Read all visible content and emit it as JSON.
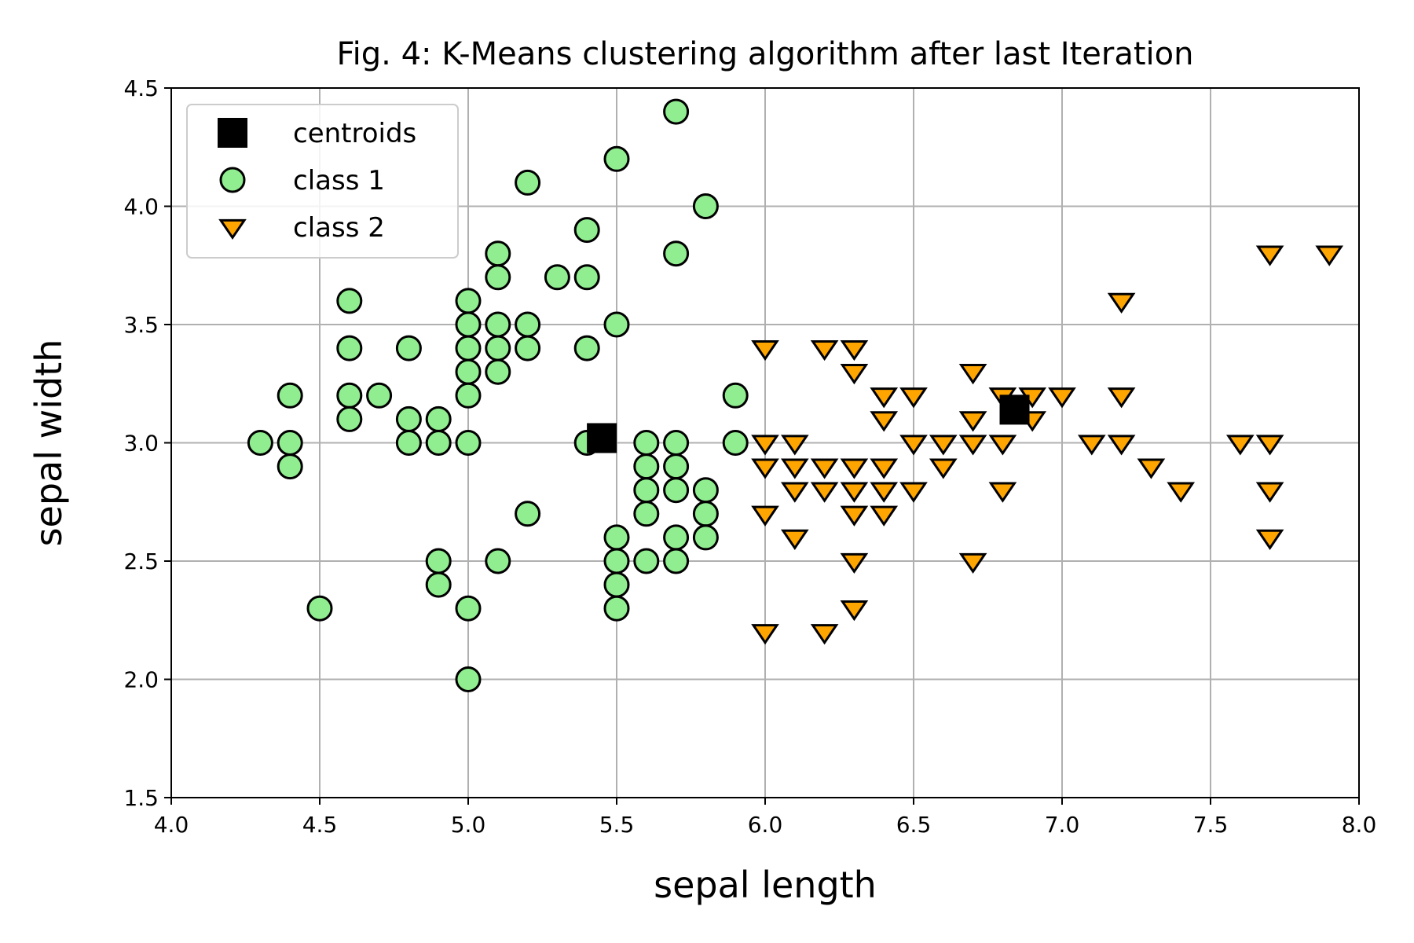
{
  "chart_data": {
    "type": "scatter",
    "title": "Fig. 4: K-Means clustering algorithm after last Iteration",
    "xlabel": "sepal length",
    "ylabel": "sepal width",
    "xlim": [
      4.0,
      8.0
    ],
    "ylim": [
      1.5,
      4.5
    ],
    "xticks": [
      "4.0",
      "4.5",
      "5.0",
      "5.5",
      "6.0",
      "6.5",
      "7.0",
      "7.5",
      "8.0"
    ],
    "yticks": [
      "1.5",
      "2.0",
      "2.5",
      "3.0",
      "3.5",
      "4.0",
      "4.5"
    ],
    "grid": true,
    "legend_position": "top-left",
    "series": [
      {
        "name": "centroids",
        "marker": "square",
        "color": "#000000",
        "points": [
          [
            5.45,
            3.02
          ],
          [
            6.84,
            3.14
          ]
        ]
      },
      {
        "name": "class 1",
        "marker": "circle",
        "color": "#90EE90",
        "edge_color": "#000000",
        "points": [
          [
            4.3,
            3.0
          ],
          [
            4.4,
            3.2
          ],
          [
            4.4,
            3.0
          ],
          [
            4.4,
            2.9
          ],
          [
            4.5,
            2.3
          ],
          [
            4.6,
            3.6
          ],
          [
            4.6,
            3.4
          ],
          [
            4.6,
            3.2
          ],
          [
            4.6,
            3.1
          ],
          [
            4.7,
            3.2
          ],
          [
            4.8,
            3.4
          ],
          [
            4.8,
            3.1
          ],
          [
            4.8,
            3.0
          ],
          [
            4.9,
            3.1
          ],
          [
            4.9,
            3.0
          ],
          [
            4.9,
            2.5
          ],
          [
            4.9,
            2.4
          ],
          [
            5.0,
            3.6
          ],
          [
            5.0,
            3.5
          ],
          [
            5.0,
            3.4
          ],
          [
            5.0,
            3.3
          ],
          [
            5.0,
            3.2
          ],
          [
            5.0,
            3.0
          ],
          [
            5.0,
            2.3
          ],
          [
            5.0,
            2.0
          ],
          [
            5.1,
            3.8
          ],
          [
            5.1,
            3.7
          ],
          [
            5.1,
            3.5
          ],
          [
            5.1,
            3.4
          ],
          [
            5.1,
            3.3
          ],
          [
            5.1,
            2.5
          ],
          [
            5.2,
            4.1
          ],
          [
            5.2,
            3.5
          ],
          [
            5.2,
            3.4
          ],
          [
            5.2,
            2.7
          ],
          [
            5.3,
            3.7
          ],
          [
            5.4,
            3.9
          ],
          [
            5.4,
            3.7
          ],
          [
            5.4,
            3.4
          ],
          [
            5.4,
            3.0
          ],
          [
            5.5,
            4.2
          ],
          [
            5.5,
            3.5
          ],
          [
            5.5,
            2.6
          ],
          [
            5.5,
            2.5
          ],
          [
            5.5,
            2.4
          ],
          [
            5.5,
            2.3
          ],
          [
            5.6,
            3.0
          ],
          [
            5.6,
            2.9
          ],
          [
            5.6,
            2.8
          ],
          [
            5.6,
            2.7
          ],
          [
            5.6,
            2.5
          ],
          [
            5.7,
            4.4
          ],
          [
            5.7,
            3.8
          ],
          [
            5.7,
            3.0
          ],
          [
            5.7,
            2.9
          ],
          [
            5.7,
            2.8
          ],
          [
            5.7,
            2.6
          ],
          [
            5.7,
            2.5
          ],
          [
            5.8,
            4.0
          ],
          [
            5.8,
            2.8
          ],
          [
            5.8,
            2.7
          ],
          [
            5.8,
            2.6
          ],
          [
            5.9,
            3.2
          ],
          [
            5.9,
            3.0
          ]
        ]
      },
      {
        "name": "class 2",
        "marker": "triangle-down",
        "color": "#FFA500",
        "edge_color": "#000000",
        "points": [
          [
            6.0,
            3.4
          ],
          [
            6.0,
            3.0
          ],
          [
            6.0,
            2.9
          ],
          [
            6.0,
            2.7
          ],
          [
            6.0,
            2.2
          ],
          [
            6.1,
            3.0
          ],
          [
            6.1,
            2.9
          ],
          [
            6.1,
            2.8
          ],
          [
            6.1,
            2.6
          ],
          [
            6.2,
            3.4
          ],
          [
            6.2,
            2.9
          ],
          [
            6.2,
            2.8
          ],
          [
            6.2,
            2.2
          ],
          [
            6.3,
            3.4
          ],
          [
            6.3,
            3.3
          ],
          [
            6.3,
            2.9
          ],
          [
            6.3,
            2.8
          ],
          [
            6.3,
            2.7
          ],
          [
            6.3,
            2.5
          ],
          [
            6.3,
            2.3
          ],
          [
            6.4,
            3.2
          ],
          [
            6.4,
            3.1
          ],
          [
            6.4,
            2.9
          ],
          [
            6.4,
            2.8
          ],
          [
            6.4,
            2.7
          ],
          [
            6.5,
            3.2
          ],
          [
            6.5,
            3.0
          ],
          [
            6.5,
            2.8
          ],
          [
            6.6,
            3.0
          ],
          [
            6.6,
            2.9
          ],
          [
            6.7,
            3.3
          ],
          [
            6.7,
            3.1
          ],
          [
            6.7,
            3.0
          ],
          [
            6.7,
            2.5
          ],
          [
            6.8,
            3.2
          ],
          [
            6.8,
            3.0
          ],
          [
            6.8,
            2.8
          ],
          [
            6.9,
            3.2
          ],
          [
            6.9,
            3.1
          ],
          [
            7.0,
            3.2
          ],
          [
            7.1,
            3.0
          ],
          [
            7.2,
            3.6
          ],
          [
            7.2,
            3.2
          ],
          [
            7.2,
            3.0
          ],
          [
            7.3,
            2.9
          ],
          [
            7.4,
            2.8
          ],
          [
            7.6,
            3.0
          ],
          [
            7.7,
            3.8
          ],
          [
            7.7,
            3.0
          ],
          [
            7.7,
            2.8
          ],
          [
            7.7,
            2.6
          ],
          [
            7.9,
            3.8
          ]
        ]
      }
    ]
  }
}
